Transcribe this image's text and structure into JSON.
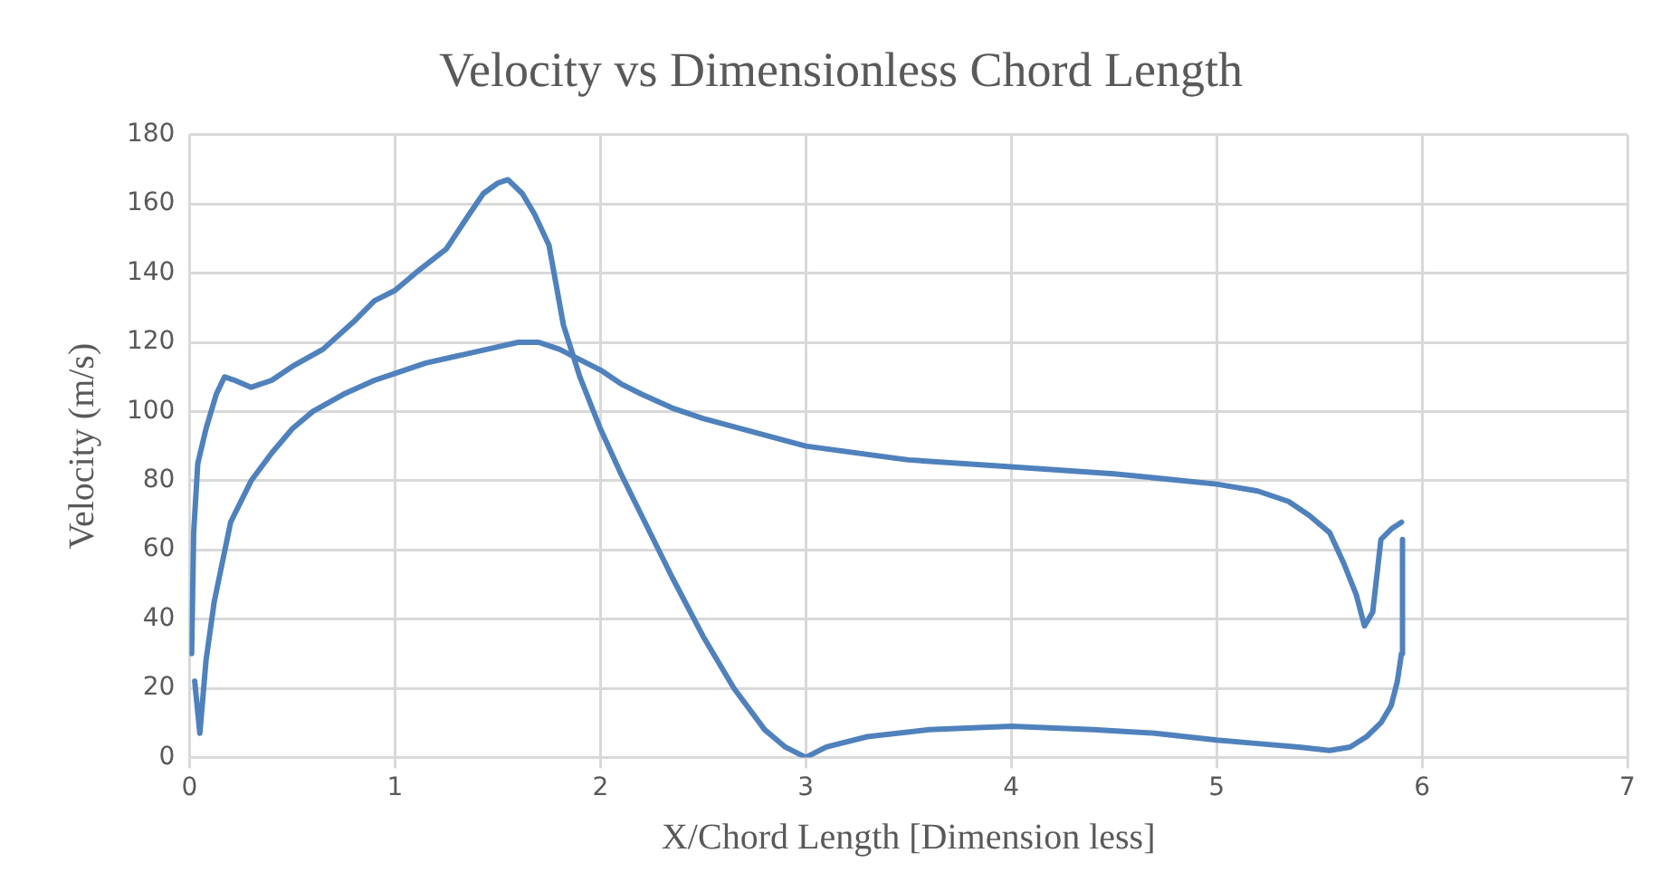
{
  "chart_data": {
    "type": "line",
    "title": "Velocity vs Dimensionless Chord Length",
    "xlabel": "X/Chord Length [Dimension less]",
    "ylabel": "Velocity (m/s)",
    "xlim": [
      0,
      7
    ],
    "xticks": [
      0,
      1,
      2,
      3,
      4,
      5,
      6,
      7
    ],
    "ylim": [
      0,
      180
    ],
    "yticks": [
      0,
      20,
      40,
      60,
      80,
      100,
      120,
      140,
      160,
      180
    ],
    "grid": true,
    "legend": false,
    "marker": "none",
    "line_style": "solid",
    "series": [
      {
        "color": "#4f81bd",
        "x": [
          0.025,
          0.05,
          0.08,
          0.12,
          0.2,
          0.3,
          0.4,
          0.5,
          0.6,
          0.75,
          0.9,
          1,
          1.15,
          1.3,
          1.45,
          1.6,
          1.7,
          1.8,
          1.9,
          2,
          2.1,
          2.2,
          2.35,
          2.5,
          2.75,
          3,
          3.5,
          4,
          4.5,
          5,
          5.2,
          5.35,
          5.45,
          5.55,
          5.62,
          5.68,
          5.72,
          5.76,
          5.8,
          5.85,
          5.9
        ],
        "values": [
          22,
          7,
          28,
          45,
          68,
          80,
          88,
          95,
          100,
          105,
          109,
          111,
          114,
          116,
          118,
          120,
          120,
          118,
          115,
          112,
          108,
          105,
          101,
          98,
          94,
          90,
          86,
          84,
          82,
          79,
          77,
          74,
          70,
          65,
          56,
          47,
          38,
          42,
          63,
          66,
          68
        ]
      },
      {
        "color": "#4f81bd",
        "x": [
          0.01,
          0.02,
          0.04,
          0.08,
          0.13,
          0.17,
          0.22,
          0.3,
          0.4,
          0.5,
          0.65,
          0.8,
          0.9,
          1,
          1.12,
          1.25,
          1.35,
          1.43,
          1.5,
          1.55,
          1.62,
          1.68,
          1.75,
          1.82,
          1.9,
          2,
          2.1,
          2.2,
          2.35,
          2.5,
          2.65,
          2.8,
          2.9,
          3,
          3.1,
          3.3,
          3.6,
          4,
          4.4,
          4.7,
          5,
          5.2,
          5.4,
          5.55,
          5.65,
          5.73,
          5.8,
          5.85,
          5.88,
          5.9,
          5.905
        ],
        "values": [
          30,
          65,
          85,
          95,
          105,
          110,
          109,
          107,
          109,
          113,
          118,
          126,
          132,
          135,
          141,
          147,
          156,
          163,
          166,
          167,
          163,
          157,
          148,
          125,
          110,
          95,
          82,
          70,
          52,
          35,
          20,
          8,
          3,
          0,
          3,
          6,
          8,
          9,
          8,
          7,
          5,
          4,
          3,
          2,
          3,
          6,
          10,
          15,
          22,
          30,
          63
        ]
      }
    ]
  }
}
